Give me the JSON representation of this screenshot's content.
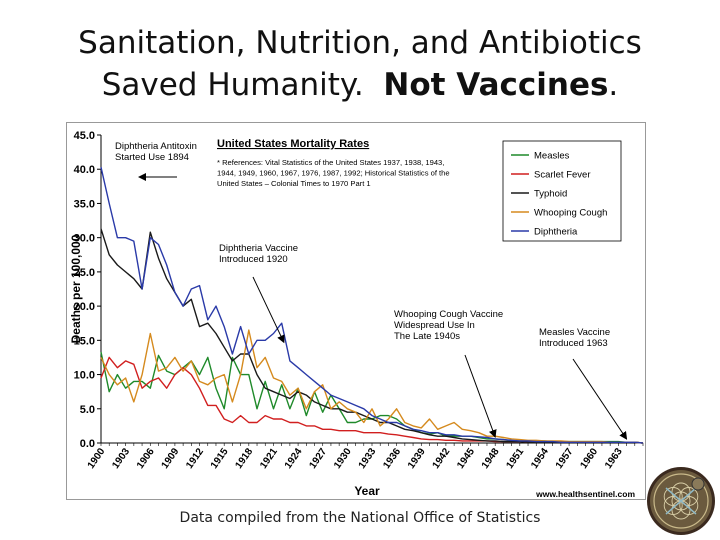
{
  "slide": {
    "title_line1": "Sanitation, Nutrition, and Antibiotics",
    "title_line2": "Saved Humanity.",
    "title_bold": "Not Vaccines",
    "title_end": ".",
    "footer": "Data compiled from the National Office of Statistics"
  },
  "chart_data": {
    "type": "line",
    "title": "United States Mortality Rates",
    "reference_note_lines": [
      "* References: Vital Statistics of the United States 1937, 1938, 1943,",
      "1944, 1949, 1960, 1967, 1976, 1987, 1992; Historical Statistics of the",
      "United States – Colonial Times to 1970 Part 1"
    ],
    "xlabel": "Year",
    "ylabel": "Deaths per 100,000",
    "xlim": [
      1900,
      1966
    ],
    "ylim": [
      0,
      45
    ],
    "yticks": [
      "0.0",
      "5.0",
      "10.0",
      "15.0",
      "20.0",
      "25.0",
      "30.0",
      "35.0",
      "40.0",
      "45.0"
    ],
    "xticks": [
      "1900",
      "1903",
      "1906",
      "1909",
      "1912",
      "1915",
      "1918",
      "1921",
      "1924",
      "1927",
      "1930",
      "1933",
      "1936",
      "1939",
      "1942",
      "1945",
      "1948",
      "1951",
      "1954",
      "1957",
      "1960",
      "1963"
    ],
    "legend_position": "top-right",
    "source_credit": "www.healthsentinel.com",
    "series": [
      {
        "name": "Measles",
        "color": "#1f8a2a",
        "x": [
          1900,
          1901,
          1902,
          1903,
          1904,
          1905,
          1906,
          1907,
          1908,
          1909,
          1910,
          1911,
          1912,
          1913,
          1914,
          1915,
          1916,
          1917,
          1918,
          1919,
          1920,
          1921,
          1922,
          1923,
          1924,
          1925,
          1926,
          1927,
          1928,
          1929,
          1930,
          1931,
          1932,
          1933,
          1934,
          1935,
          1936,
          1937,
          1938,
          1939,
          1940,
          1941,
          1942,
          1943,
          1944,
          1945,
          1946,
          1947,
          1948,
          1949,
          1950,
          1951,
          1952,
          1953,
          1954,
          1955,
          1956,
          1957,
          1958,
          1959,
          1960,
          1961,
          1962,
          1963,
          1964,
          1965,
          1966
        ],
        "values": [
          13.3,
          7.5,
          10,
          8,
          9,
          9,
          8,
          12.8,
          10.5,
          10,
          11,
          12,
          10,
          12.5,
          8,
          5,
          12.5,
          10,
          10,
          5,
          9,
          5,
          8.5,
          5,
          8,
          4,
          7.5,
          4.5,
          7,
          5,
          3,
          3,
          3.5,
          3.5,
          4,
          4,
          3.5,
          2.5,
          2,
          1.5,
          1.3,
          1.5,
          1,
          1,
          1,
          1,
          0.8,
          0.6,
          0.6,
          0.5,
          0.3,
          0.3,
          0.3,
          0.3,
          0.3,
          0.2,
          0.2,
          0.2,
          0.2,
          0.2,
          0.2,
          0.2,
          0.2,
          0.2,
          0.1,
          0.1,
          0
        ]
      },
      {
        "name": "Scarlet Fever",
        "color": "#d11f1f",
        "x": [
          1900,
          1901,
          1902,
          1903,
          1904,
          1905,
          1906,
          1907,
          1908,
          1909,
          1910,
          1911,
          1912,
          1913,
          1914,
          1915,
          1916,
          1917,
          1918,
          1919,
          1920,
          1921,
          1922,
          1923,
          1924,
          1925,
          1926,
          1927,
          1928,
          1929,
          1930,
          1931,
          1932,
          1933,
          1934,
          1935,
          1936,
          1937,
          1938,
          1939,
          1940,
          1941,
          1942,
          1943,
          1944,
          1945,
          1946,
          1947,
          1948,
          1949,
          1950,
          1951,
          1952,
          1953,
          1954,
          1955,
          1956,
          1957,
          1958,
          1959,
          1960,
          1961,
          1962,
          1963,
          1964,
          1965,
          1966
        ],
        "values": [
          9.5,
          12.5,
          11,
          12,
          11.5,
          8,
          9,
          9.5,
          8,
          10,
          11,
          10,
          8,
          5.5,
          5.5,
          3.5,
          3,
          4,
          3,
          3,
          4,
          3.5,
          3.5,
          3,
          3,
          2.5,
          2.5,
          2,
          2,
          1.8,
          1.8,
          1.8,
          1.5,
          1.5,
          1.5,
          1.3,
          1.2,
          1,
          0.8,
          0.6,
          0.5,
          0.5,
          0.4,
          0.4,
          0.3,
          0.3,
          0.3,
          0.3,
          0.2,
          0.2,
          0.2,
          0.2,
          0.1,
          0.1,
          0.1,
          0.1,
          0.1,
          0.1,
          0.1,
          0.1,
          0.1,
          0.1,
          0.1,
          0.1,
          0.1,
          0.1,
          0
        ]
      },
      {
        "name": "Typhoid",
        "color": "#1a1a1a",
        "x": [
          1900,
          1901,
          1902,
          1903,
          1904,
          1905,
          1906,
          1907,
          1908,
          1909,
          1910,
          1911,
          1912,
          1913,
          1914,
          1915,
          1916,
          1917,
          1918,
          1919,
          1920,
          1921,
          1922,
          1923,
          1924,
          1925,
          1926,
          1927,
          1928,
          1929,
          1930,
          1931,
          1932,
          1933,
          1934,
          1935,
          1936,
          1937,
          1938,
          1939,
          1940,
          1941,
          1942,
          1943,
          1944,
          1945,
          1946,
          1947,
          1948,
          1949,
          1950,
          1951,
          1952,
          1953,
          1954,
          1955,
          1956,
          1957,
          1958,
          1959,
          1960,
          1961,
          1962,
          1963,
          1964,
          1965,
          1966
        ],
        "values": [
          31.3,
          27.5,
          26,
          25,
          24,
          22.5,
          30.8,
          27,
          24,
          22,
          20,
          21,
          17,
          17.5,
          16,
          14,
          12,
          13,
          13,
          10,
          8,
          7.5,
          7,
          6.5,
          7.5,
          7,
          6,
          5.5,
          5,
          5,
          4.5,
          4.5,
          4,
          3.5,
          3,
          3,
          2.5,
          2,
          1.8,
          1.5,
          1.2,
          1,
          1,
          0.8,
          0.6,
          0.5,
          0.4,
          0.3,
          0.3,
          0.2,
          0.2,
          0.2,
          0.1,
          0.1,
          0.1,
          0.1,
          0.1,
          0.1,
          0.1,
          0.1,
          0.1,
          0.1,
          0.1,
          0.1,
          0.1,
          0.1,
          0
        ]
      },
      {
        "name": "Whooping Cough",
        "color": "#d58a1e",
        "x": [
          1900,
          1901,
          1902,
          1903,
          1904,
          1905,
          1906,
          1907,
          1908,
          1909,
          1910,
          1911,
          1912,
          1913,
          1914,
          1915,
          1916,
          1917,
          1918,
          1919,
          1920,
          1921,
          1922,
          1923,
          1924,
          1925,
          1926,
          1927,
          1928,
          1929,
          1930,
          1931,
          1932,
          1933,
          1934,
          1935,
          1936,
          1937,
          1938,
          1939,
          1940,
          1941,
          1942,
          1943,
          1944,
          1945,
          1946,
          1947,
          1948,
          1949,
          1950,
          1951,
          1952,
          1953,
          1954,
          1955,
          1956,
          1957,
          1958,
          1959,
          1960,
          1961,
          1962,
          1963,
          1964,
          1965,
          1966
        ],
        "values": [
          12.5,
          10,
          8.5,
          9.5,
          6,
          10,
          16,
          10.5,
          11,
          12.5,
          10.5,
          12,
          9,
          8.5,
          9.5,
          10,
          6,
          10,
          16.5,
          11,
          12.5,
          9.5,
          9,
          7,
          8,
          5,
          7.5,
          8.5,
          5,
          6,
          5,
          4.5,
          3,
          5,
          2.5,
          3.5,
          5,
          3,
          2.5,
          2.2,
          3.5,
          2,
          2.5,
          3,
          2,
          1.8,
          1.5,
          1,
          1,
          0.8,
          0.6,
          0.5,
          0.4,
          0.4,
          0.3,
          0.3,
          0.3,
          0.2,
          0.2,
          0.2,
          0.2,
          0.2,
          0.1,
          0.1,
          0.1,
          0.1,
          0
        ]
      },
      {
        "name": "Diphtheria",
        "color": "#2a3aa8",
        "x": [
          1900,
          1901,
          1902,
          1903,
          1904,
          1905,
          1906,
          1907,
          1908,
          1909,
          1910,
          1911,
          1912,
          1913,
          1914,
          1915,
          1916,
          1917,
          1918,
          1919,
          1920,
          1921,
          1922,
          1923,
          1924,
          1925,
          1926,
          1927,
          1928,
          1929,
          1930,
          1931,
          1932,
          1933,
          1934,
          1935,
          1936,
          1937,
          1938,
          1939,
          1940,
          1941,
          1942,
          1943,
          1944,
          1945,
          1946,
          1947,
          1948,
          1949,
          1950,
          1951,
          1952,
          1953,
          1954,
          1955,
          1956,
          1957,
          1958,
          1959,
          1960,
          1961,
          1962,
          1963,
          1964,
          1965,
          1966
        ],
        "values": [
          40.3,
          35,
          30,
          30,
          29.5,
          22.5,
          30,
          29,
          26,
          22,
          20,
          22.5,
          23,
          18,
          20,
          17,
          13,
          17,
          13,
          15,
          15,
          16,
          17.5,
          12,
          11,
          10,
          9,
          8,
          7,
          6.5,
          6,
          5.5,
          5,
          4,
          3.5,
          3,
          3,
          2.5,
          2,
          1.8,
          1.5,
          1.5,
          1.2,
          1.2,
          1,
          1,
          0.9,
          0.8,
          0.6,
          0.5,
          0.4,
          0.3,
          0.3,
          0.2,
          0.2,
          0.2,
          0.1,
          0.1,
          0.1,
          0.1,
          0.1,
          0.1,
          0.1,
          0.1,
          0.1,
          0.1,
          0
        ]
      }
    ],
    "annotations": [
      {
        "lines": [
          "Diphtheria Antitoxin",
          "Started Use 1894"
        ],
        "arrow": "left"
      },
      {
        "lines": [
          "Diphtheria Vaccine",
          "Introduced 1920"
        ],
        "arrow_to_year": 1923
      },
      {
        "lines": [
          "Whooping Cough Vaccine",
          "Widespread Use In",
          "The Late 1940s"
        ],
        "arrow_to_year": 1948
      },
      {
        "lines": [
          "Measles Vaccine",
          "Introduced 1963"
        ],
        "arrow_to_year": 1964
      }
    ]
  }
}
